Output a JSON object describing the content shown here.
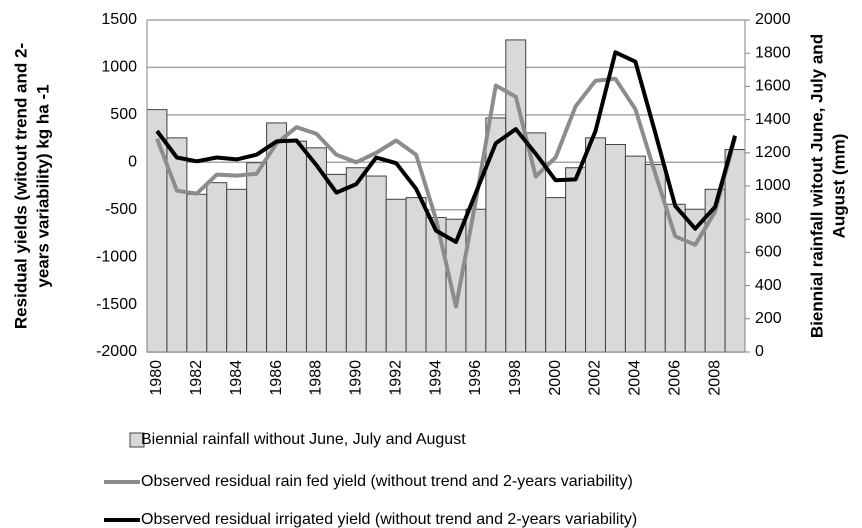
{
  "chart_data": {
    "type": "bar",
    "categories": [
      "1980",
      null,
      "1982",
      null,
      "1984",
      null,
      "1986",
      null,
      "1988",
      null,
      "1990",
      null,
      "1992",
      null,
      "1994",
      null,
      "1996",
      null,
      "1998",
      null,
      "2000",
      null,
      "2002",
      null,
      "2004",
      null,
      "2006",
      null,
      "2008",
      null
    ],
    "ylabel": [
      "Residual yields (witout trend and 2-",
      "years variability) kg ha -1"
    ],
    "y2label": [
      "Biennial rainfall witout June, July and",
      "August (mm)"
    ],
    "ylim": [
      -2000,
      1500
    ],
    "yticks": [
      -2000,
      -1500,
      -1000,
      -500,
      0,
      500,
      1000,
      1500
    ],
    "y2lim": [
      0,
      2000
    ],
    "y2ticks": [
      0,
      200,
      400,
      600,
      800,
      1000,
      1200,
      1400,
      1600,
      1800,
      2000
    ],
    "grid": true,
    "series": [
      {
        "name": "Biennial rainfall without June, July and August",
        "type": "bar",
        "axis": "y2",
        "color": "#d9d9d9",
        "values": [
          1460,
          1290,
          950,
          1020,
          980,
          1140,
          1380,
          1270,
          1230,
          1070,
          1110,
          1060,
          920,
          930,
          810,
          800,
          860,
          1410,
          1880,
          1320,
          930,
          1110,
          1290,
          1250,
          1180,
          1130,
          890,
          860,
          980,
          1220
        ]
      },
      {
        "name": "Observed residual rain fed yield (without trend and 2-years variability)",
        "type": "line",
        "color": "#8c8c8c",
        "values": [
          250,
          -300,
          -330,
          -130,
          -140,
          -120,
          200,
          370,
          300,
          80,
          0,
          100,
          230,
          80,
          -600,
          -1520,
          -400,
          810,
          690,
          -150,
          50,
          590,
          860,
          880,
          560,
          -120,
          -780,
          -870,
          -520,
          260
        ]
      },
      {
        "name": "Observed residual irrigated yield (without trend and 2-years variability)",
        "type": "line",
        "color": "#000000",
        "values": [
          330,
          50,
          10,
          50,
          30,
          80,
          220,
          230,
          -30,
          -320,
          -230,
          50,
          -10,
          -280,
          -720,
          -840,
          -320,
          200,
          350,
          90,
          -190,
          -180,
          330,
          1160,
          1060,
          310,
          -460,
          -700,
          -470,
          280
        ]
      }
    ]
  }
}
